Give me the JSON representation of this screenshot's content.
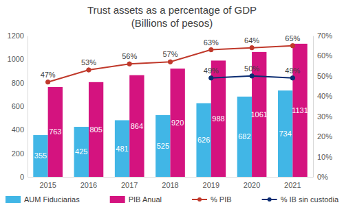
{
  "chart_data": {
    "type": "bar",
    "title": "Trust assets as a percentage of GDP",
    "subtitle": "(Billions of pesos)",
    "categories": [
      "2015",
      "2016",
      "2017",
      "2018",
      "2019",
      "2020",
      "2021"
    ],
    "series": [
      {
        "name": "AUM Fiduciarias",
        "type": "bar",
        "color": "#41b6e6",
        "values": [
          355,
          425,
          481,
          525,
          626,
          682,
          734
        ]
      },
      {
        "name": "PIB Anual",
        "type": "bar",
        "color": "#d4137f",
        "values": [
          763,
          805,
          864,
          920,
          988,
          1061,
          1131
        ]
      },
      {
        "name": "% PIB",
        "type": "line",
        "color": "#c0392b",
        "marker": "circle",
        "axis": "y2",
        "values": [
          47,
          53,
          56,
          57,
          63,
          64,
          65
        ],
        "value_labels": [
          "47%",
          "53%",
          "56%",
          "57%",
          "63%",
          "64%",
          "65%"
        ]
      },
      {
        "name": "% IB sin custodia",
        "type": "line",
        "color": "#0b2d72",
        "marker": "circle",
        "axis": "y2",
        "values": [
          null,
          null,
          null,
          null,
          49,
          50,
          49
        ],
        "value_labels": [
          null,
          null,
          null,
          null,
          "49%",
          "50%",
          "49%"
        ]
      }
    ],
    "ylim": [
      0,
      1200
    ],
    "yticks": [
      0,
      200,
      400,
      600,
      800,
      1000,
      1200
    ],
    "y2lim": [
      0,
      70
    ],
    "y2ticks": [
      {
        "value": 0,
        "label": "0%"
      },
      {
        "value": 10,
        "label": "10%"
      },
      {
        "value": 20,
        "label": "20%"
      },
      {
        "value": 30,
        "label": "30%"
      },
      {
        "value": 40,
        "label": "40%"
      },
      {
        "value": 50,
        "label": "50%"
      },
      {
        "value": 60,
        "label": "60%"
      },
      {
        "value": 70,
        "label": "70%"
      }
    ],
    "grid": false,
    "legend": "bottom",
    "data_labels": true
  }
}
